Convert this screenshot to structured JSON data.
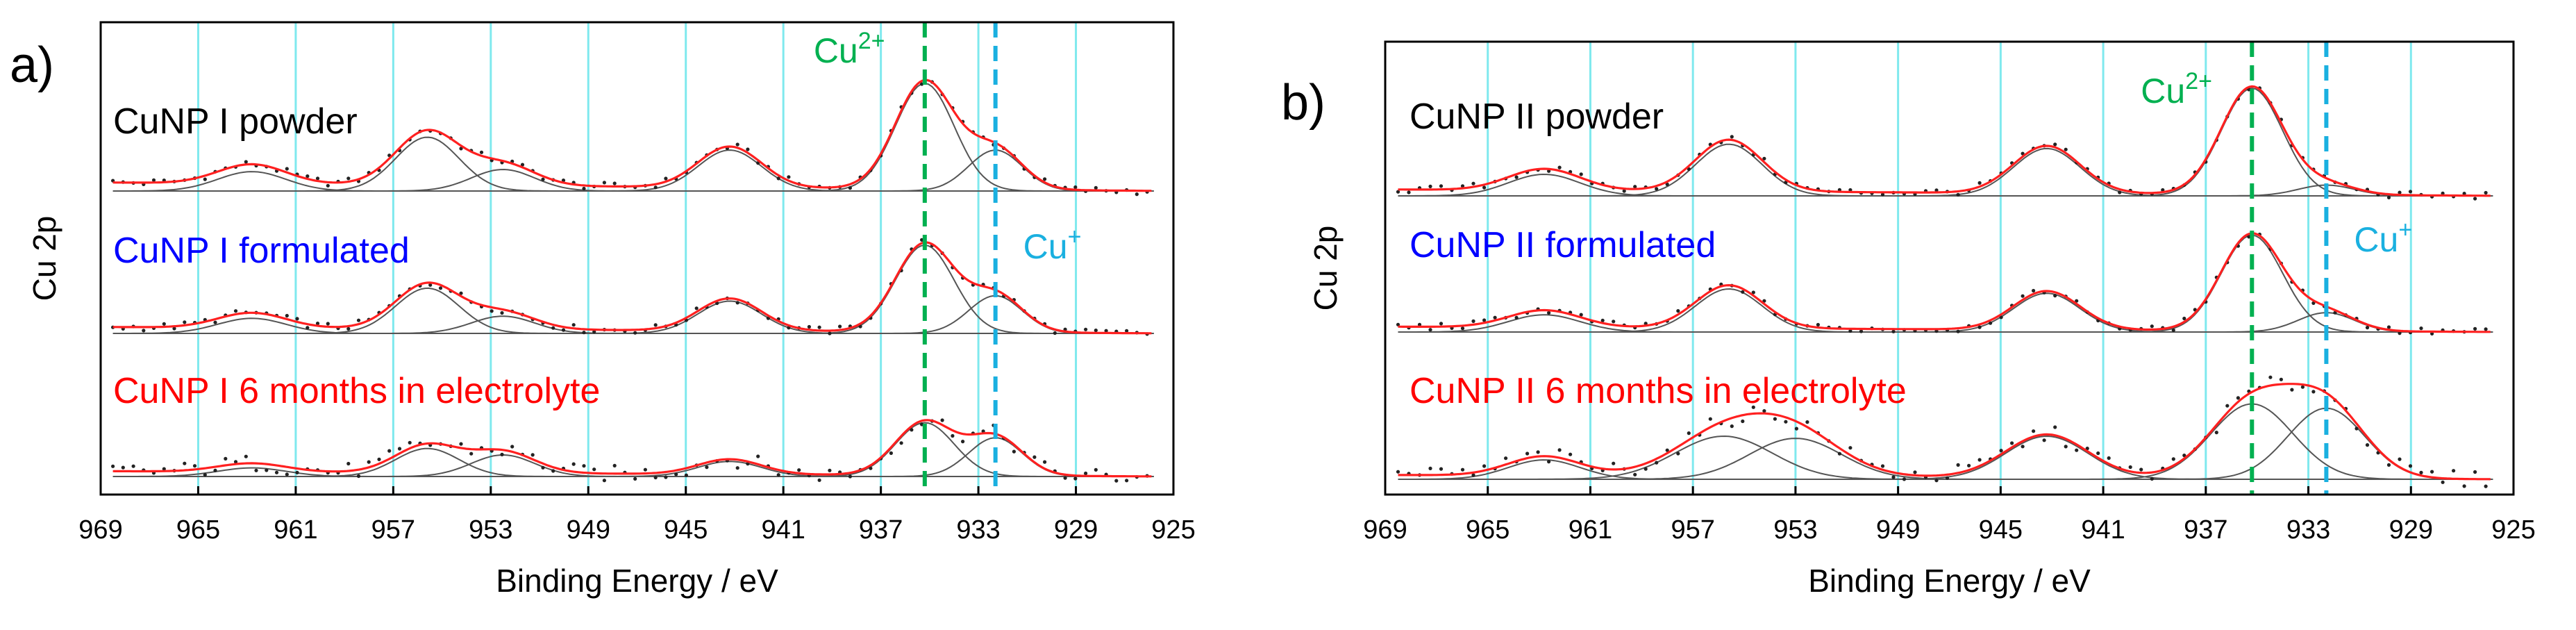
{
  "chart_data": [
    {
      "type": "line",
      "panel_label": "a)",
      "ylabel": "Cu 2p",
      "xlabel": "Binding Energy / eV",
      "xlim": [
        969,
        925
      ],
      "xticks": [
        "969",
        "965",
        "961",
        "957",
        "953",
        "949",
        "945",
        "941",
        "937",
        "933",
        "929",
        "925"
      ],
      "gridlines_ev": [
        965,
        961,
        957,
        953,
        949,
        945,
        941,
        937,
        933,
        929
      ],
      "markers": [
        {
          "name": "Cu2+",
          "base": "Cu",
          "sup": "2+",
          "ev": 935.2,
          "color": "#00b050",
          "text_pos": "upper"
        },
        {
          "name": "Cu+",
          "base": "Cu",
          "sup": "+",
          "ev": 932.3,
          "color": "#1ab0e0",
          "text_pos": "middle"
        }
      ],
      "series": [
        {
          "name": "CuNP I powder",
          "color": "#000000",
          "slope": 0.08,
          "peaks": [
            {
              "ev": 962.8,
              "amp": 0.18,
              "w": 1.4
            },
            {
              "ev": 955.6,
              "amp": 0.5,
              "w": 1.3
            },
            {
              "ev": 952.5,
              "amp": 0.2,
              "w": 1.3
            },
            {
              "ev": 943.2,
              "amp": 0.38,
              "w": 1.3
            },
            {
              "ev": 935.2,
              "amp": 1.0,
              "w": 1.2
            },
            {
              "ev": 932.3,
              "amp": 0.38,
              "w": 1.1
            }
          ]
        },
        {
          "name": "CuNP I formulated",
          "color": "#0000ff",
          "slope": 0.06,
          "peaks": [
            {
              "ev": 962.8,
              "amp": 0.14,
              "w": 1.4
            },
            {
              "ev": 955.6,
              "amp": 0.42,
              "w": 1.3
            },
            {
              "ev": 952.5,
              "amp": 0.16,
              "w": 1.3
            },
            {
              "ev": 943.2,
              "amp": 0.3,
              "w": 1.3
            },
            {
              "ev": 935.2,
              "amp": 0.82,
              "w": 1.2
            },
            {
              "ev": 932.3,
              "amp": 0.35,
              "w": 1.1
            }
          ]
        },
        {
          "name": "CuNP I 6 months in electrolyte",
          "color": "#ff0000",
          "slope": 0.05,
          "peaks": [
            {
              "ev": 962.8,
              "amp": 0.08,
              "w": 1.4
            },
            {
              "ev": 955.6,
              "amp": 0.26,
              "w": 1.3
            },
            {
              "ev": 952.5,
              "amp": 0.2,
              "w": 1.3
            },
            {
              "ev": 943.2,
              "amp": 0.14,
              "w": 1.3
            },
            {
              "ev": 935.2,
              "amp": 0.5,
              "w": 1.2
            },
            {
              "ev": 932.3,
              "amp": 0.36,
              "w": 1.1
            }
          ]
        }
      ]
    },
    {
      "type": "line",
      "panel_label": "b)",
      "ylabel": "Cu 2p",
      "xlabel": "Binding Energy / eV",
      "xlim": [
        969,
        925
      ],
      "xticks": [
        "969",
        "965",
        "961",
        "957",
        "953",
        "949",
        "945",
        "941",
        "937",
        "933",
        "929",
        "925"
      ],
      "gridlines_ev": [
        965,
        961,
        957,
        953,
        949,
        945,
        941,
        937,
        933,
        929
      ],
      "markers": [
        {
          "name": "Cu2+",
          "base": "Cu",
          "sup": "2+",
          "ev": 935.2,
          "color": "#00b050",
          "text_pos": "upper"
        },
        {
          "name": "Cu+",
          "base": "Cu",
          "sup": "+",
          "ev": 932.3,
          "color": "#1ab0e0",
          "text_pos": "middle"
        }
      ],
      "series": [
        {
          "name": "CuNP II powder",
          "color": "#000000",
          "slope": 0.06,
          "peaks": [
            {
              "ev": 962.8,
              "amp": 0.2,
              "w": 1.4
            },
            {
              "ev": 955.6,
              "amp": 0.48,
              "w": 1.3
            },
            {
              "ev": 943.2,
              "amp": 0.44,
              "w": 1.3
            },
            {
              "ev": 935.2,
              "amp": 1.0,
              "w": 1.2
            },
            {
              "ev": 932.3,
              "amp": 0.1,
              "w": 1.1
            }
          ]
        },
        {
          "name": "CuNP II formulated",
          "color": "#0000ff",
          "slope": 0.05,
          "peaks": [
            {
              "ev": 962.8,
              "amp": 0.16,
              "w": 1.4
            },
            {
              "ev": 955.6,
              "amp": 0.4,
              "w": 1.3
            },
            {
              "ev": 943.2,
              "amp": 0.36,
              "w": 1.3
            },
            {
              "ev": 935.2,
              "amp": 0.9,
              "w": 1.2
            },
            {
              "ev": 932.3,
              "amp": 0.18,
              "w": 1.1
            }
          ]
        },
        {
          "name": "CuNP II 6 months in electrolyte",
          "color": "#ff0000",
          "slope": 0.04,
          "peaks": [
            {
              "ev": 962.8,
              "amp": 0.18,
              "w": 1.4
            },
            {
              "ev": 955.8,
              "amp": 0.4,
              "w": 1.9
            },
            {
              "ev": 953.0,
              "amp": 0.38,
              "w": 1.8
            },
            {
              "ev": 943.2,
              "amp": 0.4,
              "w": 1.6
            },
            {
              "ev": 935.2,
              "amp": 0.7,
              "w": 1.6
            },
            {
              "ev": 932.3,
              "amp": 0.66,
              "w": 1.5
            }
          ]
        }
      ]
    }
  ]
}
